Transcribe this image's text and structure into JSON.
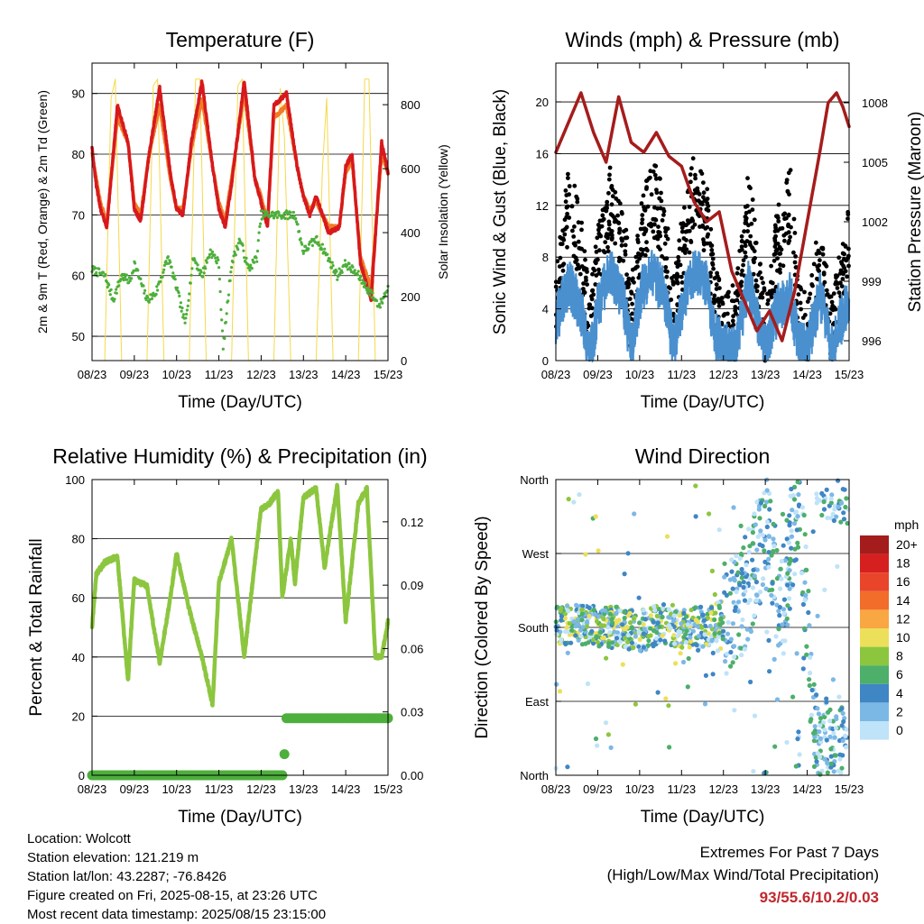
{
  "colors": {
    "temp_2m": "#d7191c",
    "temp_9m": "#f07c2a",
    "dewpoint": "#4daf3c",
    "solar": "#f5d94a",
    "wind": "#4a90cf",
    "gust": "#000000",
    "pressure": "#a51c1c",
    "rh": "#8cc63f",
    "rain": "#4daf3c",
    "extremes": "#c0272d"
  },
  "panels": {
    "temperature": {
      "title": "Temperature (F)",
      "ylabel_left": "2m & 9m T (Red, Orange) & 2m Td (Green)",
      "ylabel_right": "Solar Insolation (Yellow)",
      "xlabel": "Time (Day/UTC)",
      "yticks_left": [
        "50",
        "60",
        "70",
        "80",
        "90"
      ],
      "yticks_right": [
        "0",
        "200",
        "400",
        "600",
        "800"
      ]
    },
    "winds": {
      "title": "Winds (mph) & Pressure (mb)",
      "ylabel_left": "Sonic Wind & Gust (Blue, Black)",
      "ylabel_right": "Station Pressure (Maroon)",
      "xlabel": "Time (Day/UTC)",
      "yticks_left": [
        "0",
        "4",
        "8",
        "12",
        "16",
        "20"
      ],
      "yticks_right": [
        "996",
        "999",
        "1002",
        "1005",
        "1008"
      ]
    },
    "humidity": {
      "title": "Relative Humidity (%) & Precipitation (in)",
      "ylabel_left": "Percent & Total Rainfall",
      "xlabel": "Time (Day/UTC)",
      "yticks_left": [
        "0",
        "20",
        "40",
        "60",
        "80",
        "100"
      ],
      "yticks_right": [
        "0.00",
        "0.03",
        "0.06",
        "0.09",
        "0.12"
      ]
    },
    "direction": {
      "title": "Wind Direction",
      "ylabel_left": "Direction (Colored By Speed)",
      "xlabel": "Time (Day/UTC)",
      "yticks_left": [
        "North",
        "East",
        "South",
        "West",
        "North"
      ]
    }
  },
  "x_ticks": [
    "08/23",
    "09/23",
    "10/23",
    "11/23",
    "12/23",
    "13/23",
    "14/23",
    "15/23"
  ],
  "legend": {
    "title": "mph",
    "labels": [
      "20+",
      "18",
      "16",
      "14",
      "12",
      "10",
      "8",
      "6",
      "4",
      "2",
      "0"
    ],
    "colors": [
      "#a51c1c",
      "#d62020",
      "#e8452a",
      "#f26c2a",
      "#f8a742",
      "#ece05a",
      "#8cc63f",
      "#4daf6a",
      "#3f86c4",
      "#7cb8e6",
      "#bfe3f8"
    ]
  },
  "meta": {
    "location": "Location: Wolcott",
    "elevation": "Station elevation: 121.219 m",
    "latlon": "Station lat/lon: 43.2287; -76.8426",
    "created": "Figure created on Fri, 2025-08-15, at 23:26 UTC",
    "recent": "Most recent data timestamp: 2025/08/15 23:15:00"
  },
  "extremes": {
    "line1": "Extremes For Past 7 Days",
    "line2": "(High/Low/Max Wind/Total Precipitation)",
    "values": "93/55.6/10.2/0.03"
  },
  "chart_data": [
    {
      "type": "line",
      "title": "Temperature (F)",
      "xlabel": "Time (Day/UTC)",
      "ylabel": "2m & 9m T (Red, Orange) & 2m Td (Green)",
      "y2label": "Solar Insolation (Yellow)",
      "x_days": [
        0,
        0.5,
        1,
        1.5,
        2,
        2.5,
        3,
        3.5,
        4,
        4.5,
        5,
        5.5,
        6,
        6.5,
        7
      ],
      "ylim": [
        46,
        95
      ],
      "y2lim": [
        0,
        930
      ],
      "series": [
        {
          "name": "2m T",
          "axis": "left",
          "x": [
            0,
            0.1,
            0.2,
            0.35,
            0.6,
            0.85,
            1.0,
            1.15,
            1.35,
            1.6,
            1.85,
            2.0,
            2.15,
            2.35,
            2.6,
            2.85,
            3.0,
            3.15,
            3.3,
            3.6,
            3.85,
            4.0,
            4.15,
            4.3,
            4.6,
            4.85,
            5.0,
            5.15,
            5.3,
            5.6,
            5.85,
            6.0,
            6.15,
            6.35,
            6.6,
            6.85,
            7.0
          ],
          "y": [
            81,
            75,
            71,
            68,
            88,
            82,
            71,
            69,
            80,
            91,
            77,
            71,
            70,
            82,
            92,
            78,
            71,
            68,
            75,
            92,
            76,
            72,
            68,
            88,
            90,
            78,
            73,
            70,
            73,
            67,
            68,
            78,
            80,
            62,
            56,
            82,
            77
          ]
        },
        {
          "name": "9m T",
          "axis": "left",
          "x": [
            0,
            0.2,
            0.35,
            0.6,
            0.85,
            1.0,
            1.15,
            1.35,
            1.6,
            1.85,
            2.0,
            2.15,
            2.35,
            2.6,
            2.85,
            3.0,
            3.15,
            3.3,
            3.6,
            3.85,
            4.0,
            4.15,
            4.3,
            4.6,
            4.85,
            5.0,
            5.15,
            5.3,
            5.6,
            5.85,
            6.0,
            6.15,
            6.35,
            6.6,
            6.85,
            7.0
          ],
          "y": [
            80,
            72,
            69,
            86,
            82,
            72,
            70,
            80,
            88,
            76,
            71,
            71,
            81,
            89,
            78,
            72,
            69,
            76,
            90,
            76,
            73,
            69,
            86,
            88,
            78,
            73,
            71,
            72,
            68,
            68,
            77,
            79,
            63,
            58,
            80,
            77
          ]
        },
        {
          "name": "2m Td",
          "axis": "left",
          "x": [
            0,
            0.3,
            0.5,
            0.7,
            0.9,
            1.0,
            1.3,
            1.5,
            1.8,
            2.0,
            2.2,
            2.4,
            2.6,
            2.8,
            3.0,
            3.1,
            3.3,
            3.5,
            3.7,
            3.9,
            4.0,
            4.3,
            4.6,
            4.8,
            5.0,
            5.3,
            5.5,
            5.8,
            6.0,
            6.3,
            6.6,
            6.8,
            7.0
          ],
          "y": [
            61,
            60,
            56,
            60,
            59,
            62,
            56,
            57,
            63,
            58,
            52,
            63,
            60,
            64,
            62,
            48,
            62,
            66,
            61,
            63,
            70,
            70,
            70,
            70,
            64,
            66,
            64,
            60,
            62,
            60,
            57,
            55,
            58
          ]
        },
        {
          "name": "Solar",
          "axis": "right",
          "x": [
            0,
            0.3,
            0.45,
            0.55,
            0.7,
            1.3,
            1.45,
            1.55,
            1.7,
            2.3,
            2.45,
            2.55,
            2.7,
            3.3,
            3.45,
            3.55,
            3.7,
            4.3,
            4.45,
            4.55,
            4.7,
            5.3,
            5.45,
            5.55,
            5.7,
            6.3,
            6.45,
            6.55,
            6.7,
            7.0
          ],
          "y": [
            0,
            0,
            820,
            880,
            0,
            0,
            860,
            880,
            0,
            0,
            880,
            880,
            0,
            0,
            860,
            880,
            0,
            0,
            850,
            700,
            0,
            0,
            600,
            820,
            0,
            0,
            880,
            880,
            0,
            0
          ]
        }
      ]
    },
    {
      "type": "line",
      "title": "Winds (mph) & Pressure (mb)",
      "xlabel": "Time (Day/UTC)",
      "ylabel": "Sonic Wind & Gust (Blue, Black)",
      "y2label": "Station Pressure (Maroon)",
      "ylim": [
        0,
        23
      ],
      "y2lim": [
        995,
        1010
      ],
      "series": [
        {
          "name": "Sonic Wind",
          "axis": "left",
          "x": [
            0,
            0.3,
            0.6,
            0.8,
            1.0,
            1.3,
            1.6,
            1.8,
            2.0,
            2.3,
            2.6,
            2.8,
            3.0,
            3.3,
            3.6,
            3.8,
            4.0,
            4.3,
            4.6,
            4.8,
            5.0,
            5.3,
            5.6,
            5.8,
            6.0,
            6.3,
            6.6,
            6.8,
            7.0
          ],
          "y": [
            3,
            6,
            4,
            0,
            4,
            7,
            5,
            1,
            5,
            7,
            5,
            1,
            4,
            7,
            6,
            2,
            1,
            1,
            6,
            3,
            1,
            4,
            5,
            1,
            1,
            5,
            1,
            3,
            5
          ]
        },
        {
          "name": "Gust",
          "axis": "left",
          "x": [
            0,
            0.3,
            0.6,
            0.8,
            1.0,
            1.3,
            1.6,
            1.8,
            2.0,
            2.3,
            2.6,
            2.8,
            3.0,
            3.3,
            3.6,
            3.8,
            4.0,
            4.3,
            4.6,
            4.8,
            5.0,
            5.3,
            5.6,
            5.8,
            6.0,
            6.3,
            6.6,
            6.8,
            7.0
          ],
          "y": [
            5,
            12,
            9,
            2,
            8,
            12,
            10,
            3,
            9,
            13,
            10,
            3,
            8,
            13,
            11,
            4,
            3,
            3,
            12,
            7,
            2,
            9,
            12,
            3,
            2,
            8,
            2,
            6,
            9
          ]
        },
        {
          "name": "Pressure",
          "axis": "right",
          "x": [
            0,
            0.3,
            0.6,
            0.9,
            1.2,
            1.5,
            1.8,
            2.1,
            2.4,
            2.7,
            3.0,
            3.3,
            3.6,
            3.9,
            4.2,
            4.5,
            4.8,
            5.1,
            5.4,
            5.7,
            6.0,
            6.3,
            6.5,
            6.7,
            6.85,
            7.0
          ],
          "y": [
            1005.5,
            1007,
            1008.5,
            1006.5,
            1005,
            1008.3,
            1006,
            1005.5,
            1006.5,
            1005.3,
            1004.8,
            1003,
            1002,
            1002.5,
            999.5,
            998,
            996.5,
            997.5,
            996,
            998.5,
            1002,
            1005.5,
            1008,
            1008.5,
            1007.8,
            1006.8
          ]
        }
      ]
    },
    {
      "type": "line",
      "title": "Relative Humidity (%) & Precipitation (in)",
      "xlabel": "Time (Day/UTC)",
      "ylabel": "Percent & Total Rainfall",
      "ylim": [
        0,
        100
      ],
      "y2lim": [
        0,
        0.14
      ],
      "series": [
        {
          "name": "RH",
          "axis": "left",
          "x": [
            0,
            0.1,
            0.3,
            0.6,
            0.85,
            1.0,
            1.3,
            1.6,
            1.85,
            2.0,
            2.3,
            2.6,
            2.85,
            3.0,
            3.3,
            3.6,
            3.85,
            4.0,
            4.2,
            4.4,
            4.5,
            4.7,
            4.8,
            5.0,
            5.3,
            5.5,
            5.8,
            6.0,
            6.3,
            6.5,
            6.7,
            6.85,
            7.0
          ],
          "y": [
            50,
            68,
            72,
            74,
            32,
            66,
            64,
            38,
            60,
            75,
            56,
            40,
            24,
            65,
            80,
            40,
            72,
            90,
            92,
            96,
            60,
            80,
            65,
            94,
            97,
            70,
            98,
            52,
            92,
            97,
            40,
            40,
            52
          ]
        },
        {
          "name": "Precipitation",
          "axis": "right",
          "x": [
            0,
            4.5,
            4.55,
            4.6,
            7.0
          ],
          "y": [
            0,
            0,
            0.01,
            0.027,
            0.027
          ]
        }
      ]
    },
    {
      "type": "scatter",
      "title": "Wind Direction",
      "xlabel": "Time (Day/UTC)",
      "ylabel": "Direction (Colored By Speed)",
      "y_categories": [
        "North",
        "East",
        "South",
        "West",
        "North"
      ],
      "series": [
        {
          "name": "Direction (deg)",
          "x": [
            0,
            0.5,
            1,
            1.5,
            2,
            2.5,
            3,
            3.5,
            4,
            4.3,
            4.6,
            5,
            5.4,
            5.8,
            6.2,
            6.6,
            7
          ],
          "y": [
            180,
            185,
            180,
            180,
            175,
            185,
            180,
            180,
            190,
            200,
            230,
            300,
            200,
            350,
            30,
            20,
            15
          ]
        }
      ]
    }
  ]
}
